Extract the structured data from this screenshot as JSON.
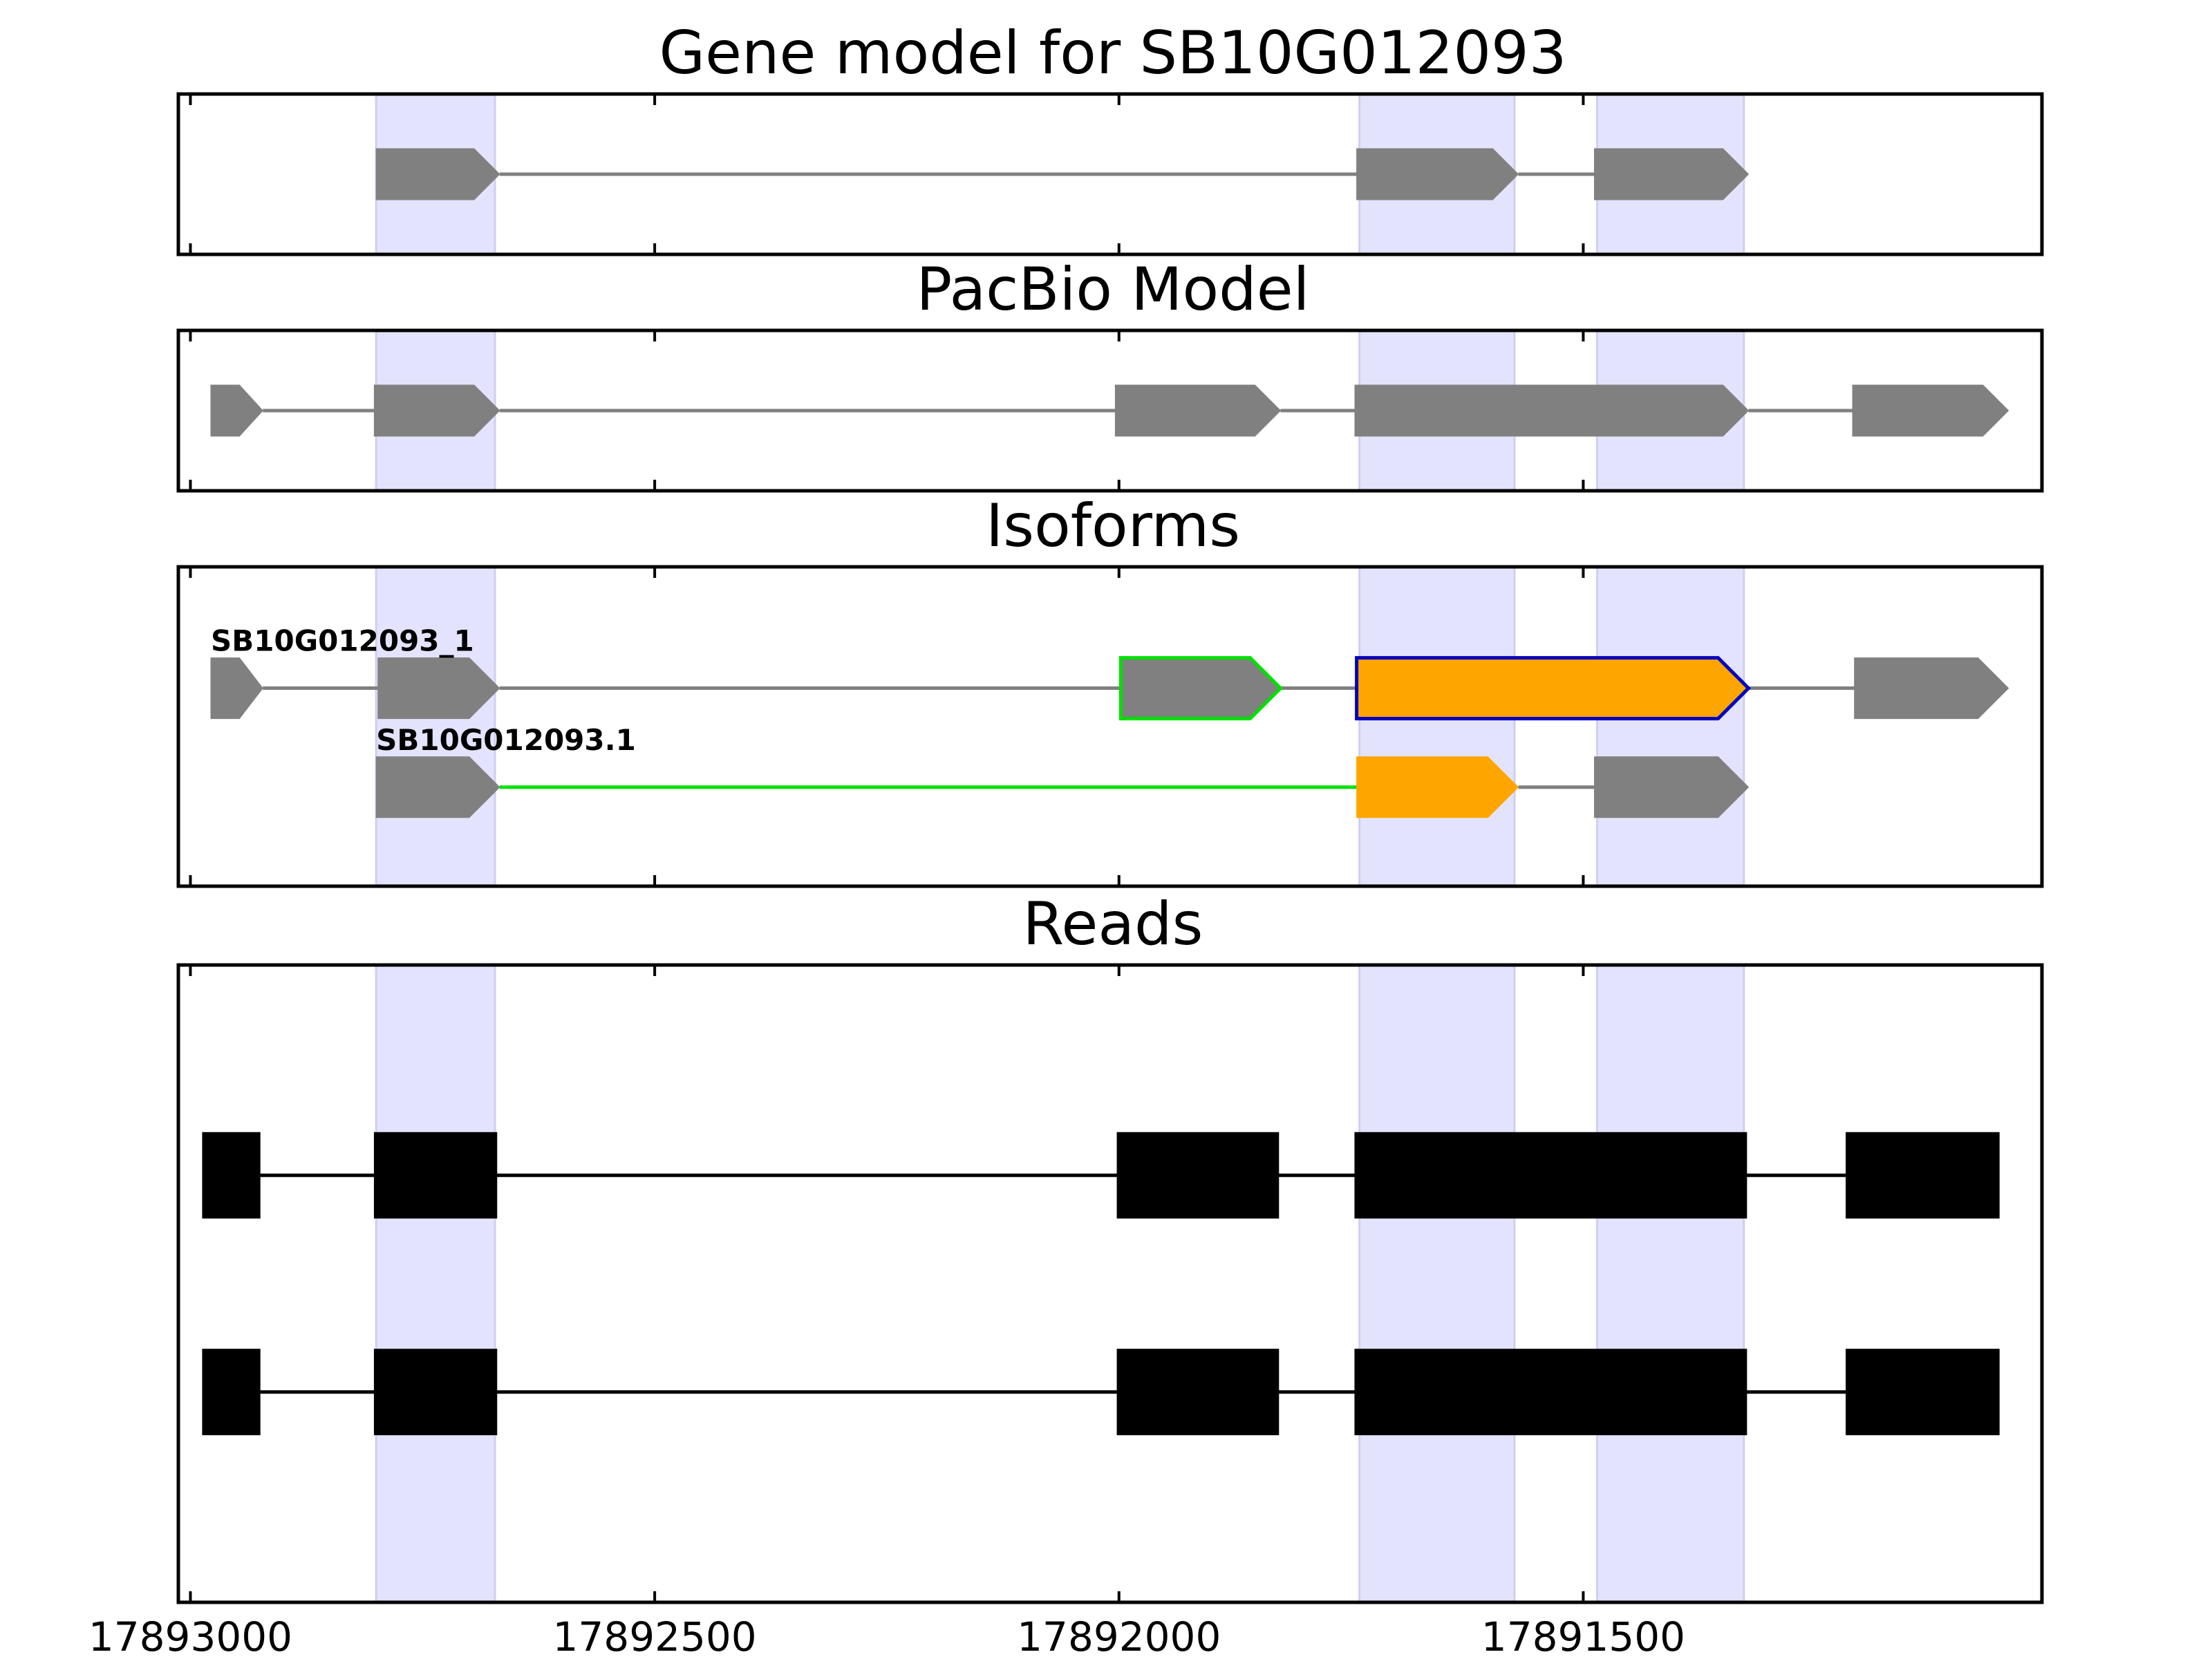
{
  "chart_data": {
    "type": "gene-track",
    "x_axis": {
      "min": 17893013,
      "max": 17891006,
      "reversed": true,
      "ticks": [
        17893000,
        17892500,
        17892000,
        17891500
      ],
      "tick_labels": [
        "17893000",
        "17892500",
        "17892000",
        "17891500"
      ]
    },
    "highlight_color": "#e3e3fd",
    "highlight_regions": [
      [
        17892800,
        17892672
      ],
      [
        17891741,
        17891574
      ],
      [
        17891485,
        17891327
      ]
    ],
    "panels": [
      {
        "title": "Gene model for SB10G012093",
        "rows": [
          {
            "label": "",
            "label_x": null,
            "row": 0.5,
            "line_color": "#808080",
            "exons": [
              {
                "start": 17892800,
                "end": 17892667,
                "fill": "#808080",
                "edge": null
              },
              {
                "start": 17891744,
                "end": 17891570,
                "fill": "#808080",
                "edge": null
              },
              {
                "start": 17891488,
                "end": 17891322,
                "fill": "#808080",
                "edge": null
              }
            ],
            "introns": [
              {
                "start": 17892667,
                "end": 17891744,
                "color": "#808080"
              },
              {
                "start": 17891570,
                "end": 17891488,
                "color": "#808080"
              }
            ]
          }
        ]
      },
      {
        "title": "PacBio Model",
        "rows": [
          {
            "label": "",
            "label_x": null,
            "row": 0.5,
            "line_color": "#808080",
            "exons": [
              {
                "start": 17892978,
                "end": 17892922,
                "fill": "#808080",
                "edge": null
              },
              {
                "start": 17892802,
                "end": 17892667,
                "fill": "#808080",
                "edge": null
              },
              {
                "start": 17892004,
                "end": 17891826,
                "fill": "#808080",
                "edge": null
              },
              {
                "start": 17891746,
                "end": 17891322,
                "fill": "#808080",
                "edge": null
              },
              {
                "start": 17891210,
                "end": 17891042,
                "fill": "#808080",
                "edge": null
              }
            ],
            "introns": [
              {
                "start": 17892922,
                "end": 17892802,
                "color": "#808080"
              },
              {
                "start": 17892667,
                "end": 17892004,
                "color": "#808080"
              },
              {
                "start": 17891826,
                "end": 17891746,
                "color": "#808080"
              },
              {
                "start": 17891322,
                "end": 17891210,
                "color": "#808080"
              }
            ]
          }
        ]
      },
      {
        "title": "Isoforms",
        "rows": [
          {
            "label": "SB10G012093_1",
            "label_x": 17892978,
            "row": 0.38,
            "line_color": "#808080",
            "exons": [
              {
                "start": 17892978,
                "end": 17892922,
                "fill": "#808080",
                "edge": null
              },
              {
                "start": 17892798,
                "end": 17892667,
                "fill": "#808080",
                "edge": null
              },
              {
                "start": 17891998,
                "end": 17891826,
                "fill": "#808080",
                "edge": "#00e000"
              },
              {
                "start": 17891744,
                "end": 17891322,
                "fill": "#ffa500",
                "edge": "#0000c0"
              },
              {
                "start": 17891208,
                "end": 17891042,
                "fill": "#808080",
                "edge": null
              }
            ],
            "introns": [
              {
                "start": 17892922,
                "end": 17892798,
                "color": "#808080"
              },
              {
                "start": 17892667,
                "end": 17891998,
                "color": "#808080"
              },
              {
                "start": 17891826,
                "end": 17891744,
                "color": "#808080"
              },
              {
                "start": 17891322,
                "end": 17891208,
                "color": "#808080"
              }
            ]
          },
          {
            "label": "SB10G012093.1",
            "label_x": 17892800,
            "row": 0.69,
            "line_color": "#808080",
            "exons": [
              {
                "start": 17892800,
                "end": 17892667,
                "fill": "#808080",
                "edge": null
              },
              {
                "start": 17891744,
                "end": 17891570,
                "fill": "#ffa500",
                "edge": null
              },
              {
                "start": 17891488,
                "end": 17891322,
                "fill": "#808080",
                "edge": null
              }
            ],
            "introns": [
              {
                "start": 17892667,
                "end": 17891744,
                "color": "#00e000"
              },
              {
                "start": 17891570,
                "end": 17891488,
                "color": "#808080"
              }
            ]
          }
        ]
      },
      {
        "title": "Reads",
        "rows": [
          {
            "label": "",
            "label_x": null,
            "row": 0.33,
            "line_color": "#000000",
            "block_exons": true,
            "exons": [
              {
                "start": 17892987,
                "end": 17892925,
                "fill": "#000000",
                "edge": null
              },
              {
                "start": 17892802,
                "end": 17892670,
                "fill": "#000000",
                "edge": null
              },
              {
                "start": 17892002,
                "end": 17891828,
                "fill": "#000000",
                "edge": null
              },
              {
                "start": 17891746,
                "end": 17891324,
                "fill": "#000000",
                "edge": null
              },
              {
                "start": 17891217,
                "end": 17891052,
                "fill": "#000000",
                "edge": null
              }
            ],
            "introns": [
              {
                "start": 17892925,
                "end": 17892802,
                "color": "#000000"
              },
              {
                "start": 17892670,
                "end": 17892002,
                "color": "#000000"
              },
              {
                "start": 17891828,
                "end": 17891746,
                "color": "#000000"
              },
              {
                "start": 17891324,
                "end": 17891217,
                "color": "#000000"
              }
            ]
          },
          {
            "label": "",
            "label_x": null,
            "row": 0.67,
            "line_color": "#000000",
            "block_exons": true,
            "exons": [
              {
                "start": 17892987,
                "end": 17892925,
                "fill": "#000000",
                "edge": null
              },
              {
                "start": 17892802,
                "end": 17892670,
                "fill": "#000000",
                "edge": null
              },
              {
                "start": 17892002,
                "end": 17891828,
                "fill": "#000000",
                "edge": null
              },
              {
                "start": 17891746,
                "end": 17891324,
                "fill": "#000000",
                "edge": null
              },
              {
                "start": 17891217,
                "end": 17891052,
                "fill": "#000000",
                "edge": null
              }
            ],
            "introns": [
              {
                "start": 17892925,
                "end": 17892802,
                "color": "#000000"
              },
              {
                "start": 17892670,
                "end": 17892002,
                "color": "#000000"
              },
              {
                "start": 17891828,
                "end": 17891746,
                "color": "#000000"
              },
              {
                "start": 17891324,
                "end": 17891217,
                "color": "#000000"
              }
            ]
          }
        ]
      }
    ]
  }
}
